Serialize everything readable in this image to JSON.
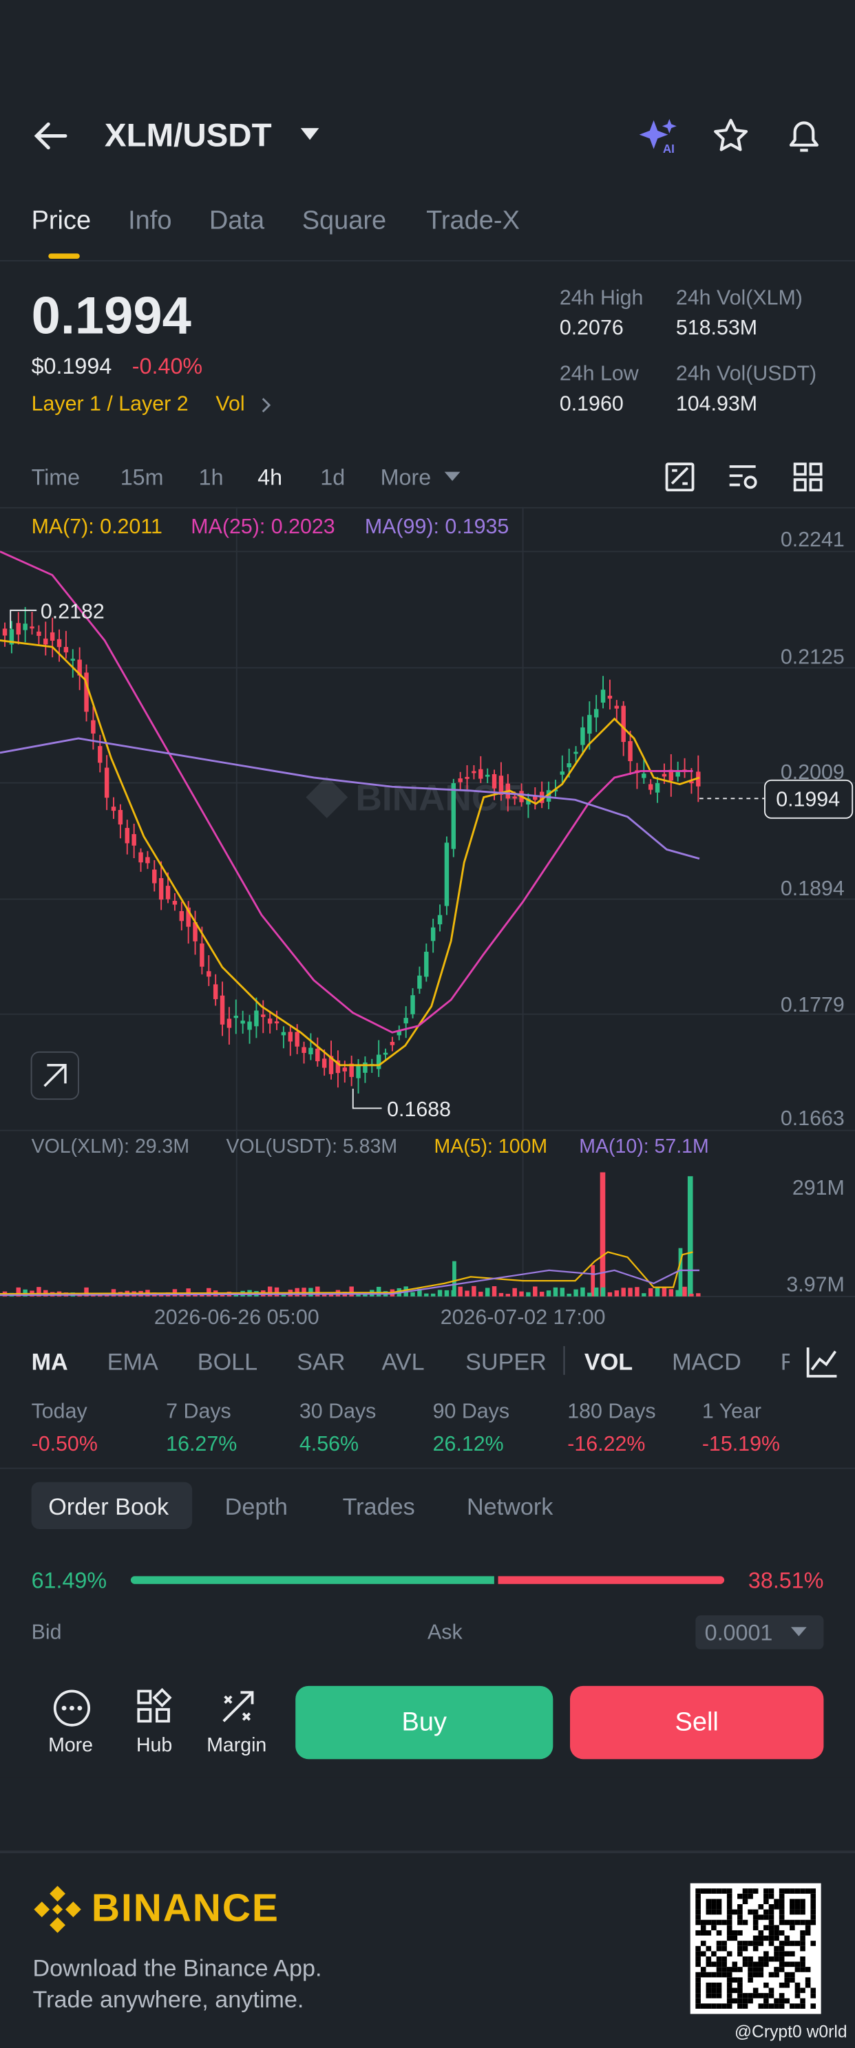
{
  "header": {
    "title": "XLM/USDT"
  },
  "tabs": [
    "Price",
    "Info",
    "Data",
    "Square",
    "Trade-X"
  ],
  "price": {
    "last": "0.1994",
    "usd": "$0.1994",
    "change": "-0.40%",
    "tag": "Layer 1 / Layer 2",
    "tag2": "Vol"
  },
  "stats": [
    {
      "label": "24h High",
      "value": "0.2076"
    },
    {
      "label": "24h Vol(XLM)",
      "value": "518.53M"
    },
    {
      "label": "24h Low",
      "value": "0.1960"
    },
    {
      "label": "24h Vol(USDT)",
      "value": "104.93M"
    }
  ],
  "intervals": [
    "Time",
    "15m",
    "1h",
    "4h",
    "1d",
    "More"
  ],
  "chart": {
    "ma_legend": [
      "MA(7): 0.2011",
      "MA(25): 0.2023",
      "MA(99): 0.1935"
    ],
    "price_axis": [
      "0.2241",
      "0.2125",
      "0.2009",
      "0.1894",
      "0.1779",
      "0.1663"
    ],
    "current": "0.1994",
    "high_marker": "0.2182",
    "low_marker": "0.1688",
    "watermark": "BINANCE",
    "vol_legend": [
      "VOL(XLM): 29.3M",
      "VOL(USDT): 5.83M",
      "MA(5): 100M",
      "MA(10): 57.1M"
    ],
    "vol_axis": [
      "291M",
      "3.97M"
    ],
    "time_axis": [
      "2026-06-26 05:00",
      "2026-07-02 17:00"
    ]
  },
  "indicators": [
    "MA",
    "EMA",
    "BOLL",
    "SAR",
    "AVL",
    "SUPER",
    "VOL",
    "MACD",
    "RSI"
  ],
  "performance": [
    {
      "label": "Today",
      "value": "-0.50%"
    },
    {
      "label": "7 Days",
      "value": "16.27%"
    },
    {
      "label": "30 Days",
      "value": "4.56%"
    },
    {
      "label": "90 Days",
      "value": "26.12%"
    },
    {
      "label": "180 Days",
      "value": "-16.22%"
    },
    {
      "label": "1 Year",
      "value": "-15.19%"
    }
  ],
  "book_tabs": [
    "Order Book",
    "Depth",
    "Trades",
    "Network"
  ],
  "book": {
    "bid_pct": "61.49%",
    "ask_pct": "38.51%",
    "bid": "Bid",
    "ask": "Ask",
    "precision": "0.0001"
  },
  "actions": [
    "More",
    "Hub",
    "Margin"
  ],
  "buttons": {
    "buy": "Buy",
    "sell": "Sell"
  },
  "footer": {
    "brand": "BINANCE",
    "lines": [
      "Download the Binance App.",
      "Trade anywhere, anytime."
    ],
    "credit": "@Crypt0 w0rld"
  }
}
